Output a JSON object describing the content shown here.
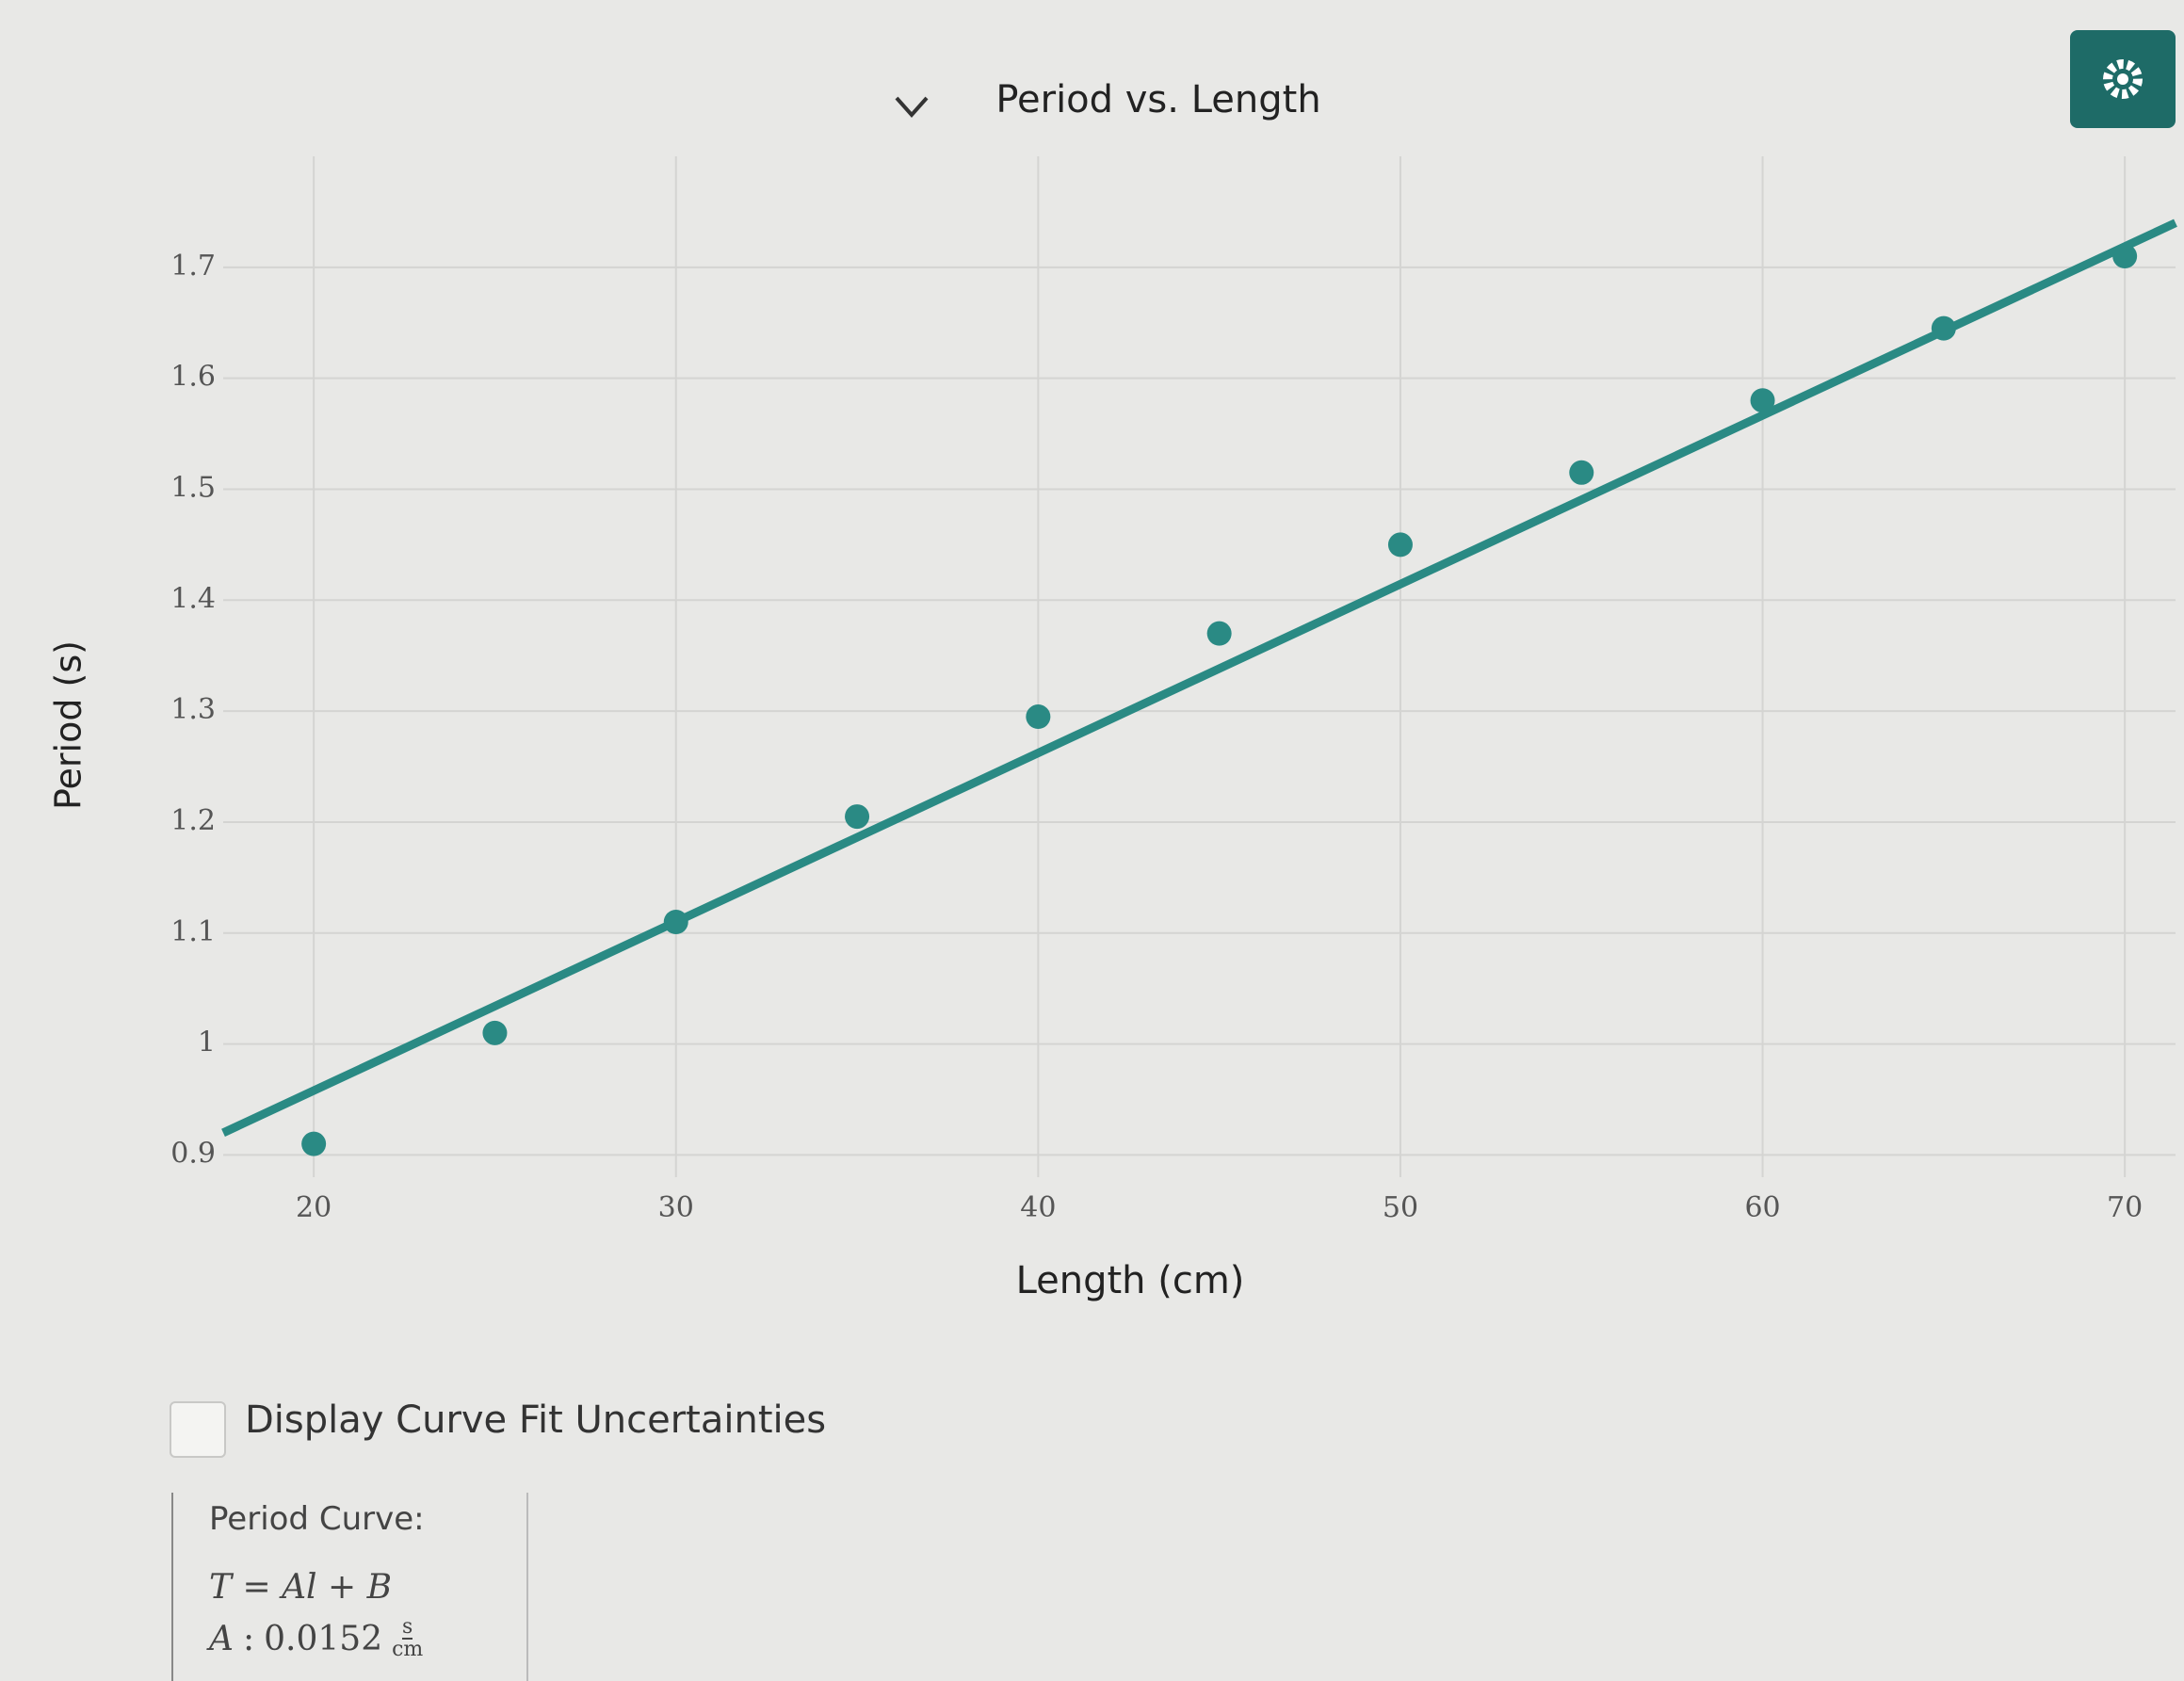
{
  "chart_data": {
    "type": "scatter",
    "title": "Period vs. Length",
    "x_label": "Length (cm)",
    "y_label": "Period (s)",
    "x": [
      20,
      25,
      30,
      35,
      40,
      45,
      50,
      55,
      60,
      65,
      70
    ],
    "values": [
      0.91,
      1.01,
      1.11,
      1.205,
      1.295,
      1.37,
      1.45,
      1.515,
      1.58,
      1.645,
      1.71
    ],
    "color": "#2a8a84",
    "fit": {
      "x": [
        17.5,
        71.4
      ],
      "values": [
        0.92,
        1.74
      ],
      "color": "#2a8a84"
    },
    "xlim": [
      17.5,
      71.4
    ],
    "ylim": [
      0.88,
      1.8
    ],
    "xticks": [
      20,
      30,
      40,
      50,
      60,
      70
    ],
    "yticks": [
      0.9,
      1,
      1.1,
      1.2,
      1.3,
      1.4,
      1.5,
      1.6,
      1.7
    ],
    "grid": true
  },
  "controls": {
    "checkbox_label": "Display Curve Fit Uncertainties"
  },
  "fit_panel": {
    "title": "Period Curve:",
    "equation": "T = Al + B",
    "parameter": {
      "name": "A",
      "separator": ":",
      "value": "0.0152",
      "unit_numerator": "s",
      "unit_denominator": "cm"
    }
  }
}
